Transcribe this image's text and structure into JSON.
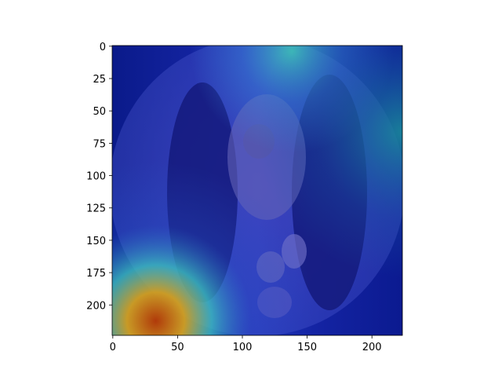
{
  "chart_data": {
    "type": "heatmap",
    "title": "",
    "xlabel": "",
    "ylabel": "",
    "xlim": [
      0,
      224
    ],
    "ylim": [
      224,
      0
    ],
    "x_ticks": [
      0,
      50,
      100,
      150,
      200
    ],
    "y_ticks": [
      0,
      25,
      50,
      75,
      100,
      125,
      150,
      175,
      200
    ],
    "x_tick_labels": [
      "0",
      "50",
      "100",
      "150",
      "200"
    ],
    "y_tick_labels": [
      "0",
      "25",
      "50",
      "75",
      "100",
      "125",
      "150",
      "175",
      "200"
    ],
    "grid": false,
    "colormap": "jet",
    "image_description_hidden": true,
    "hot_regions": [
      {
        "x": 15,
        "y": 200,
        "intensity": 1.0
      },
      {
        "x": 130,
        "y": 5,
        "intensity": 0.55
      }
    ]
  },
  "colors": {
    "background": "#ffffff",
    "axis": "#000000",
    "cold": "#0a1690",
    "warm": "#c87814",
    "hot": "#b84010"
  }
}
